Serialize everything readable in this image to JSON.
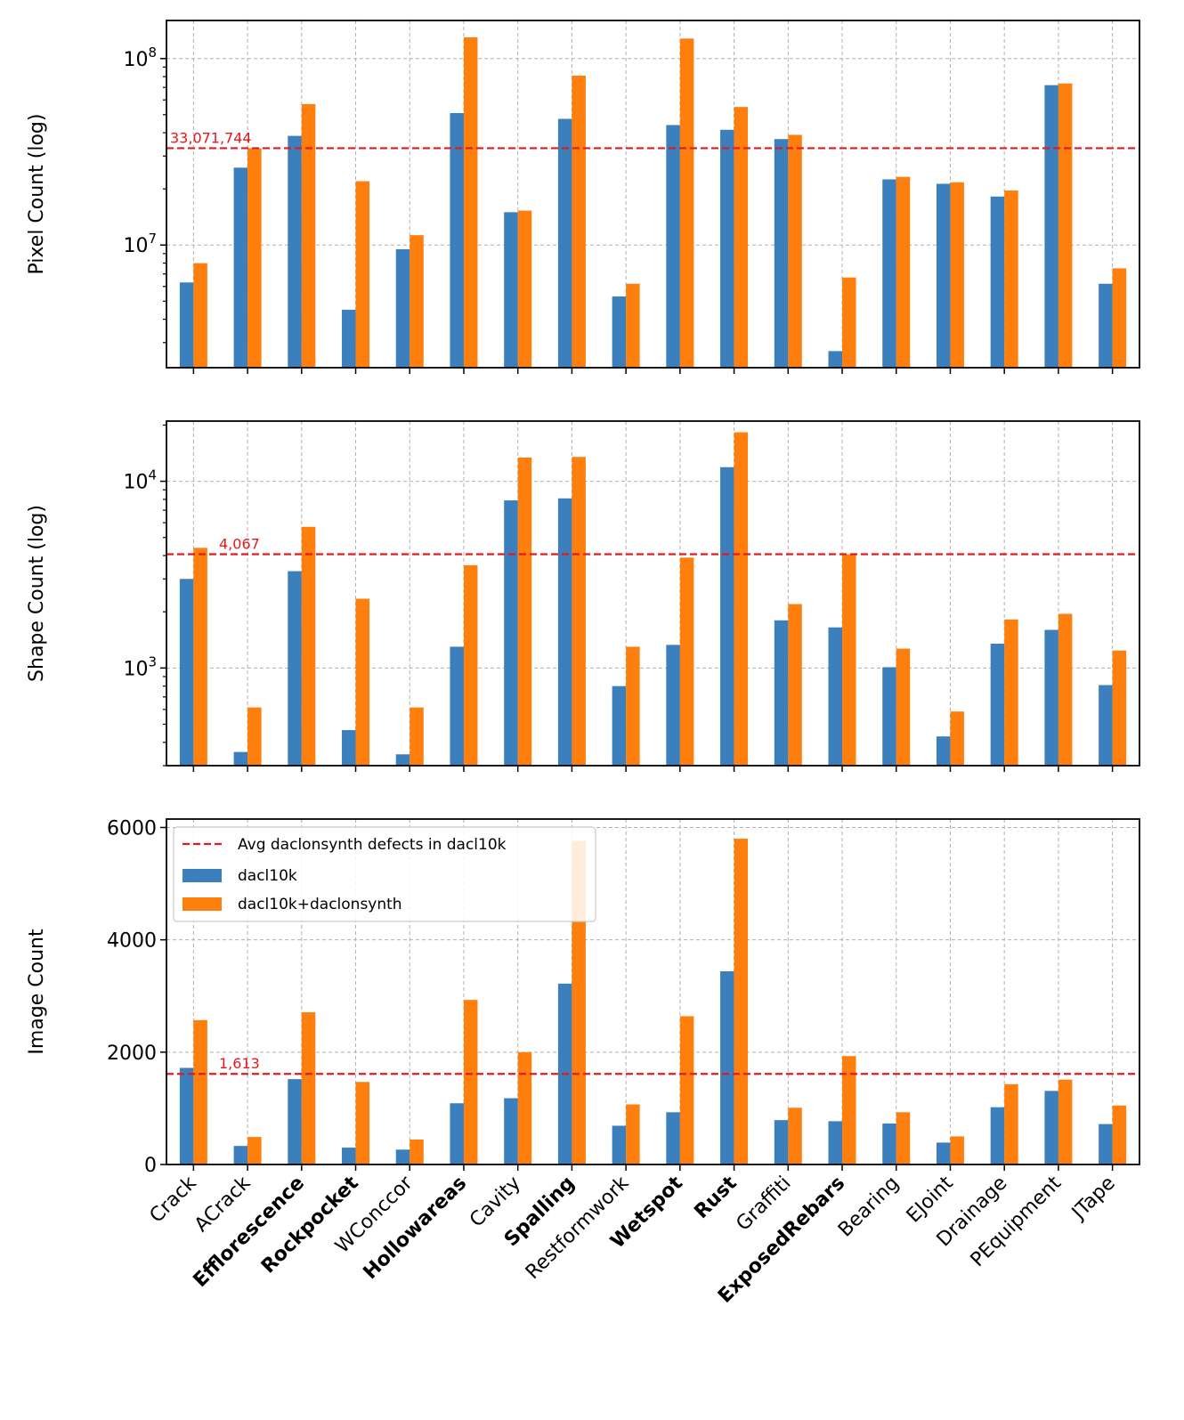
{
  "colors": {
    "dacl10k": "#3b7fbd",
    "combined": "#ff7f0e",
    "avg_line": "#e31a1c",
    "grid": "#b0b0b0"
  },
  "chart_data": [
    {
      "type": "bar",
      "scale": "log",
      "ylabel": "Pixel Count (log)",
      "ylim": [
        2200000,
        160000000
      ],
      "yticks": [
        {
          "value": 10000000,
          "base": "10",
          "exp": "7"
        },
        {
          "value": 100000000,
          "base": "10",
          "exp": "8"
        }
      ],
      "minor_ticks": [
        3000000,
        4000000,
        5000000,
        6000000,
        7000000,
        8000000,
        9000000,
        20000000,
        30000000,
        40000000,
        50000000,
        60000000,
        70000000,
        80000000,
        90000000
      ],
      "avg_value": 33071744,
      "avg_label": "33,071,744",
      "series": [
        {
          "name": "dacl10k",
          "values": [
            6300000,
            26000000,
            38500000,
            4500000,
            9500000,
            51000000,
            15000000,
            47500000,
            5300000,
            44000000,
            41500000,
            37000000,
            2700000,
            22500000,
            21300000,
            18200000,
            72000000,
            6200000
          ]
        },
        {
          "name": "dacl10k+daclonsynth",
          "values": [
            8000000,
            33000000,
            57000000,
            22000000,
            11300000,
            130000000,
            15300000,
            81000000,
            6200000,
            128000000,
            55000000,
            39000000,
            6700000,
            23200000,
            21700000,
            19600000,
            73500000,
            7500000
          ]
        }
      ]
    },
    {
      "type": "bar",
      "scale": "log",
      "ylabel": "Shape Count (log)",
      "ylim": [
        300,
        21000
      ],
      "yticks": [
        {
          "value": 1000,
          "base": "10",
          "exp": "3"
        },
        {
          "value": 10000,
          "base": "10",
          "exp": "4"
        }
      ],
      "minor_ticks": [
        300,
        400,
        500,
        600,
        700,
        800,
        900,
        2000,
        3000,
        4000,
        5000,
        6000,
        7000,
        8000,
        9000,
        20000
      ],
      "avg_value": 4067,
      "avg_label": "4,067",
      "series": [
        {
          "name": "dacl10k",
          "values": [
            3000,
            355,
            3300,
            465,
            345,
            1300,
            7900,
            8100,
            800,
            1330,
            11900,
            1800,
            1650,
            1010,
            430,
            1350,
            1600,
            810
          ]
        },
        {
          "name": "dacl10k+daclonsynth",
          "values": [
            4400,
            615,
            5700,
            2350,
            615,
            3550,
            13400,
            13500,
            1300,
            3900,
            18300,
            2200,
            4060,
            1270,
            585,
            1820,
            1950,
            1240
          ]
        }
      ]
    },
    {
      "type": "bar",
      "scale": "linear",
      "ylabel": "Image Count",
      "ylim": [
        0,
        6150
      ],
      "yticks": [
        {
          "value": 0,
          "label": "0"
        },
        {
          "value": 2000,
          "label": "2000"
        },
        {
          "value": 4000,
          "label": "4000"
        },
        {
          "value": 6000,
          "label": "6000"
        }
      ],
      "avg_value": 1613,
      "avg_label": "1,613",
      "legend": {
        "position": "upper-left",
        "entries": [
          "Avg daclonsynth defects in dacl10k",
          "dacl10k",
          "dacl10k+daclonsynth"
        ]
      },
      "series": [
        {
          "name": "dacl10k",
          "values": [
            1720,
            330,
            1520,
            300,
            265,
            1090,
            1180,
            3220,
            690,
            930,
            3440,
            790,
            770,
            730,
            390,
            1020,
            1310,
            720
          ]
        },
        {
          "name": "dacl10k+daclonsynth",
          "values": [
            2570,
            490,
            2710,
            1470,
            445,
            2930,
            2000,
            5760,
            1070,
            2640,
            5800,
            1010,
            1930,
            930,
            500,
            1430,
            1510,
            1050
          ]
        }
      ]
    }
  ],
  "categories": [
    {
      "label": "Crack",
      "bold": false
    },
    {
      "label": "ACrack",
      "bold": false
    },
    {
      "label": "Efflorescence",
      "bold": true
    },
    {
      "label": "Rockpocket",
      "bold": true
    },
    {
      "label": "WConccor",
      "bold": false
    },
    {
      "label": "Hollowareas",
      "bold": true
    },
    {
      "label": "Cavity",
      "bold": false
    },
    {
      "label": "Spalling",
      "bold": true
    },
    {
      "label": "Restformwork",
      "bold": false
    },
    {
      "label": "Wetspot",
      "bold": true
    },
    {
      "label": "Rust",
      "bold": true
    },
    {
      "label": "Graffiti",
      "bold": false
    },
    {
      "label": "ExposedRebars",
      "bold": true
    },
    {
      "label": "Bearing",
      "bold": false
    },
    {
      "label": "EJoint",
      "bold": false
    },
    {
      "label": "Drainage",
      "bold": false
    },
    {
      "label": "PEquipment",
      "bold": false
    },
    {
      "label": "JTape",
      "bold": false
    }
  ]
}
